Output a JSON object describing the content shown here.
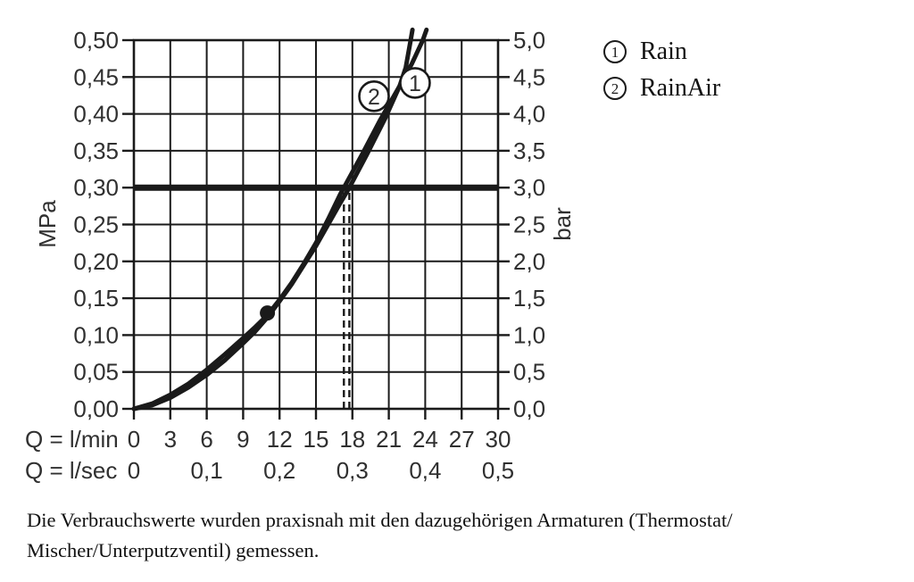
{
  "page": {
    "background": "#ffffff"
  },
  "legend": {
    "items": [
      {
        "symbol": "1",
        "label": "Rain"
      },
      {
        "symbol": "2",
        "label": "RainAir"
      }
    ]
  },
  "caption": {
    "lines": [
      "Die Verbrauchswerte wurden praxisnah mit den dazugehörigen Armaturen (Thermostat/",
      "Mischer/Unterputzventil) gemessen."
    ]
  },
  "chart_data": {
    "type": "line",
    "title": "",
    "grid": true,
    "x_axis_primary": {
      "label": "Q = l/min",
      "min": 0,
      "max": 30,
      "ticks": [
        0,
        3,
        6,
        9,
        12,
        15,
        18,
        21,
        24,
        27,
        30
      ],
      "tick_labels": [
        "0",
        "3",
        "6",
        "9",
        "12",
        "15",
        "18",
        "21",
        "24",
        "27",
        "30"
      ]
    },
    "x_axis_secondary": {
      "label": "Q = l/sec",
      "ticks_l_min": [
        0,
        6,
        12,
        18,
        24,
        30
      ],
      "tick_labels": [
        "0",
        "0,1",
        "0,2",
        "0,3",
        "0,4",
        "0,5"
      ]
    },
    "y_axis_left": {
      "label": "MPa",
      "min": 0,
      "max": 0.5,
      "ticks": [
        0,
        0.05,
        0.1,
        0.15,
        0.2,
        0.25,
        0.3,
        0.35,
        0.4,
        0.45,
        0.5
      ],
      "tick_labels": [
        "0,00",
        "0,05",
        "0,10",
        "0,15",
        "0,20",
        "0,25",
        "0,30",
        "0,35",
        "0,40",
        "0,45",
        "0,50"
      ]
    },
    "y_axis_right": {
      "label": "bar",
      "min": 0,
      "max": 5,
      "ticks": [
        0,
        0.5,
        1,
        1.5,
        2,
        2.5,
        3,
        3.5,
        4,
        4.5,
        5
      ],
      "tick_labels": [
        "0,0",
        "0,5",
        "1,0",
        "1,5",
        "2,0",
        "2,5",
        "3,0",
        "3,5",
        "4,0",
        "4,5",
        "5,0"
      ]
    },
    "series": [
      {
        "id": "1",
        "name": "Rain",
        "points": [
          [
            0,
            0
          ],
          [
            1.5,
            0.007
          ],
          [
            3,
            0.019
          ],
          [
            4.5,
            0.034
          ],
          [
            6,
            0.053
          ],
          [
            7.5,
            0.074
          ],
          [
            9,
            0.096
          ],
          [
            10,
            0.111
          ],
          [
            11,
            0.127
          ],
          [
            12,
            0.148
          ],
          [
            13,
            0.171
          ],
          [
            14,
            0.197
          ],
          [
            15,
            0.225
          ],
          [
            16,
            0.257
          ],
          [
            17,
            0.291
          ],
          [
            17.3,
            0.3
          ],
          [
            18.8,
            0.345
          ],
          [
            20.3,
            0.392
          ],
          [
            21.9,
            0.438
          ],
          [
            22.9,
            0.468
          ],
          [
            23.8,
            0.5
          ],
          [
            24.1,
            0.514
          ]
        ]
      },
      {
        "id": "2",
        "name": "RainAir",
        "points": [
          [
            0,
            0
          ],
          [
            1.5,
            0.005
          ],
          [
            3,
            0.015
          ],
          [
            4.5,
            0.029
          ],
          [
            6,
            0.046
          ],
          [
            7.5,
            0.066
          ],
          [
            9,
            0.089
          ],
          [
            10,
            0.105
          ],
          [
            11,
            0.124
          ],
          [
            12,
            0.146
          ],
          [
            13,
            0.169
          ],
          [
            14,
            0.195
          ],
          [
            15,
            0.221
          ],
          [
            16,
            0.25
          ],
          [
            17,
            0.279
          ],
          [
            17.75,
            0.3
          ],
          [
            19.2,
            0.345
          ],
          [
            20.7,
            0.394
          ],
          [
            21.9,
            0.438
          ],
          [
            22.4,
            0.463
          ],
          [
            22.8,
            0.5
          ],
          [
            22.95,
            0.514
          ]
        ]
      }
    ],
    "annotations": {
      "pressure_line": {
        "mpa": 0.3,
        "bar": 3.0
      },
      "working_point": {
        "x_l_min": 11,
        "y_mpa": 0.13
      },
      "dashed_lines_x_l_min": [
        17.3,
        17.75
      ],
      "curve_labels": [
        {
          "text": "1",
          "x_l_min": 23.16,
          "y_mpa": 0.442
        },
        {
          "text": "2",
          "x_l_min": 19.78,
          "y_mpa": 0.424
        }
      ]
    },
    "colors": {
      "line": "#1a1a1a",
      "axis_text": "#303030"
    }
  }
}
